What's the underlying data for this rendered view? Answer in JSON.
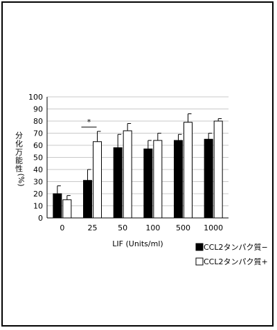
{
  "chart_data": {
    "type": "bar",
    "categories": [
      "0",
      "25",
      "50",
      "100",
      "500",
      "1000"
    ],
    "series": [
      {
        "name": "CCL2タンパク質−",
        "fill": "#000000",
        "values": [
          20,
          31,
          58,
          57,
          64,
          65
        ],
        "errors": [
          6.5,
          9,
          11,
          7,
          5,
          5
        ]
      },
      {
        "name": "CCL2タンパク質+",
        "fill": "#ffffff",
        "values": [
          15,
          63,
          72,
          64,
          79,
          80
        ],
        "errors": [
          3.5,
          8.5,
          6,
          6,
          7,
          2
        ]
      }
    ],
    "ylim": [
      0,
      100
    ],
    "yticks": [
      0,
      10,
      20,
      30,
      40,
      50,
      60,
      70,
      80,
      90,
      100
    ],
    "xlabel": "LIF (Units/ml)",
    "ylabel": "分化万能性",
    "ylabel_unit": "(%)",
    "significance": {
      "marker": "*",
      "category": "25"
    },
    "grid": true,
    "legend_position": "bottom-right"
  }
}
